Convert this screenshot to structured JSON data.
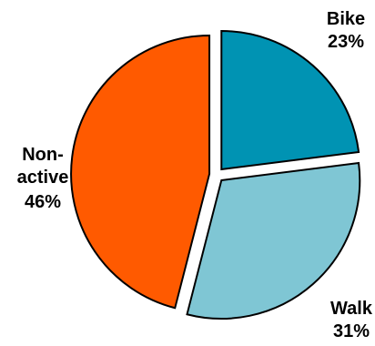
{
  "chart_data": {
    "type": "pie",
    "title": "",
    "categories": [
      "Bike",
      "Walk",
      "Non-active"
    ],
    "values": [
      23,
      31,
      46
    ],
    "value_labels": [
      "23%",
      "31%",
      "46%"
    ],
    "colors": [
      "#0093B3",
      "#7FC6D4",
      "#FF5A00"
    ],
    "exploded": true,
    "legend": "none"
  }
}
